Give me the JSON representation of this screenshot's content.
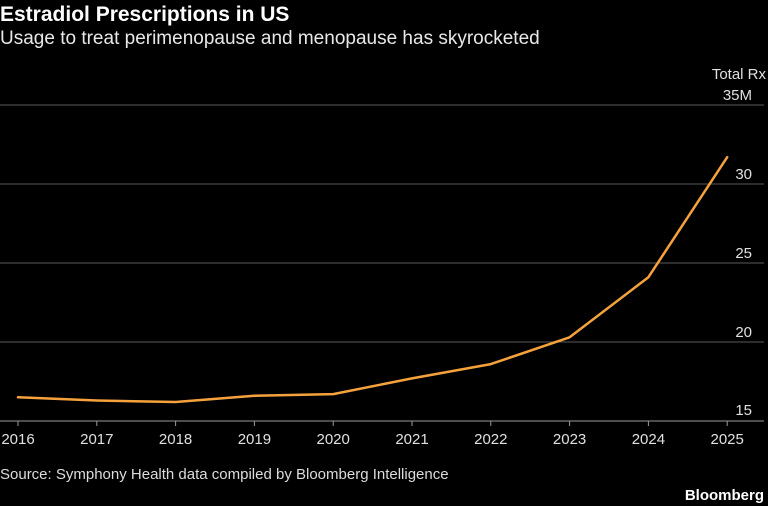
{
  "title": "Estradiol Prescriptions in US",
  "subtitle": "Usage to treat perimenopause and menopause has skyrocketed",
  "source": "Source: Symphony Health data compiled by Bloomberg Intelligence",
  "brand": "Bloomberg",
  "colors": {
    "background": "#000000",
    "line": "#f5a23d",
    "grid": "#5a5a5a",
    "text": "#ffffff"
  },
  "chart_data": {
    "type": "line",
    "title": "Estradiol Prescriptions in US",
    "subtitle": "Usage to treat perimenopause and menopause has skyrocketed",
    "ylabel": "Total Rx",
    "x": [
      "2016",
      "2017",
      "2018",
      "2019",
      "2020",
      "2021",
      "2022",
      "2023",
      "2024",
      "2025"
    ],
    "series": [
      {
        "values": [
          16.5,
          16.3,
          16.2,
          16.6,
          16.7,
          17.7,
          18.6,
          20.3,
          24.1,
          31.7
        ]
      }
    ],
    "ylim": [
      15,
      35
    ],
    "yticks": [
      15,
      20,
      25,
      30,
      35
    ],
    "ytick_labels": [
      "15",
      "20",
      "25",
      "30",
      "35M"
    ],
    "grid": true,
    "y_axis_position": "right"
  }
}
